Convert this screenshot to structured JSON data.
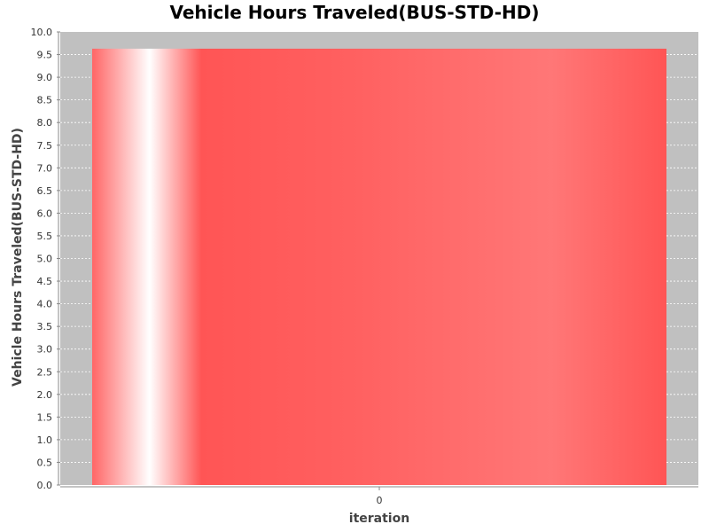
{
  "chart_data": {
    "type": "bar",
    "title": "Vehicle Hours Traveled(BUS-STD-HD)",
    "xlabel": "iteration",
    "ylabel": "Vehicle Hours Traveled(BUS-STD-HD)",
    "categories": [
      "0"
    ],
    "values": [
      9.63
    ],
    "ylim": [
      0,
      10
    ],
    "yticks": [
      "0.0",
      "0.5",
      "1.0",
      "1.5",
      "2.0",
      "2.5",
      "3.0",
      "3.5",
      "4.0",
      "4.5",
      "5.0",
      "5.5",
      "6.0",
      "6.5",
      "7.0",
      "7.5",
      "8.0",
      "8.5",
      "9.0",
      "9.5",
      "10.0"
    ],
    "grid": true,
    "legend": "none",
    "colors": {
      "bar": "#ff5555",
      "plot_background": "#c0c0c0",
      "gridline": "#ffffff"
    }
  }
}
